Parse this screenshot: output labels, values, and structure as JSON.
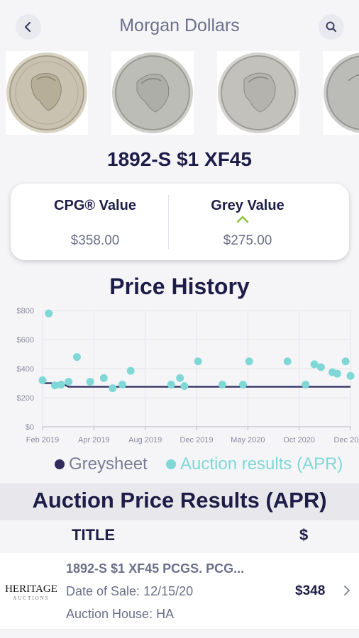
{
  "header": {
    "title": "Morgan Dollars",
    "back_icon": "chevron-left-icon",
    "search_icon": "search-icon"
  },
  "coin_images": [
    {
      "name": "coin-image-1",
      "tone": "#b9b3a6"
    },
    {
      "name": "coin-image-2",
      "tone": "#b0b0ab"
    },
    {
      "name": "coin-image-3",
      "tone": "#b8b7b2"
    },
    {
      "name": "coin-image-4",
      "tone": "#acacaa"
    }
  ],
  "coin_name": "1892-S $1 XF45",
  "values": {
    "cpg_label": "CPG® Value",
    "cpg_amount": "$358.00",
    "grey_label": "Grey Value",
    "grey_amount": "$275.00",
    "grey_trend_icon": "caret-up-icon"
  },
  "price_history_title": "Price History",
  "chart_data": {
    "type": "scatter",
    "x_ticks": [
      "Feb 2019",
      "Apr 2019",
      "Aug 2019",
      "Dec 2019",
      "May 2020",
      "Oct 2020",
      "Dec 2020"
    ],
    "y_ticks": [
      "$0",
      "$200",
      "$400",
      "$600",
      "$800"
    ],
    "ylim": [
      0,
      800
    ],
    "xlim": [
      "2019-02-01",
      "2020-12-31"
    ],
    "grid": true,
    "series": [
      {
        "name": "Greysheet",
        "type": "line",
        "color": "#2e2d5e",
        "points": [
          {
            "x": "2019-02-01",
            "y": 300
          },
          {
            "x": "2019-03-15",
            "y": 300
          },
          {
            "x": "2019-04-01",
            "y": 275
          },
          {
            "x": "2020-12-31",
            "y": 275
          }
        ]
      },
      {
        "name": "Auction results (APR)",
        "type": "scatter",
        "color": "#7fd8d6",
        "points": [
          {
            "x": "2019-02-01",
            "y": 320
          },
          {
            "x": "2019-02-15",
            "y": 780
          },
          {
            "x": "2019-03-01",
            "y": 285
          },
          {
            "x": "2019-03-15",
            "y": 290
          },
          {
            "x": "2019-04-01",
            "y": 310
          },
          {
            "x": "2019-04-20",
            "y": 480
          },
          {
            "x": "2019-05-20",
            "y": 310
          },
          {
            "x": "2019-06-20",
            "y": 335
          },
          {
            "x": "2019-07-10",
            "y": 265
          },
          {
            "x": "2019-08-01",
            "y": 290
          },
          {
            "x": "2019-08-20",
            "y": 385
          },
          {
            "x": "2019-11-20",
            "y": 290
          },
          {
            "x": "2019-12-10",
            "y": 335
          },
          {
            "x": "2019-12-20",
            "y": 280
          },
          {
            "x": "2020-01-20",
            "y": 450
          },
          {
            "x": "2020-03-15",
            "y": 290
          },
          {
            "x": "2020-05-01",
            "y": 290
          },
          {
            "x": "2020-05-15",
            "y": 450
          },
          {
            "x": "2020-08-10",
            "y": 450
          },
          {
            "x": "2020-09-20",
            "y": 290
          },
          {
            "x": "2020-10-10",
            "y": 430
          },
          {
            "x": "2020-10-25",
            "y": 410
          },
          {
            "x": "2020-11-20",
            "y": 375
          },
          {
            "x": "2020-12-01",
            "y": 365
          },
          {
            "x": "2020-12-20",
            "y": 450
          },
          {
            "x": "2020-12-31",
            "y": 350
          }
        ]
      }
    ]
  },
  "legend": {
    "greysheet": "Greysheet",
    "auction": "Auction results (APR)"
  },
  "apr": {
    "title": "Auction Price Results (APR)",
    "col_title": "TITLE",
    "col_price": "$"
  },
  "results": [
    {
      "logo_text": "HERITAGE",
      "logo_sub": "AUCTIONS",
      "title": "1892-S $1 XF45 PCGS. PCG...",
      "date_label": "Date of Sale:",
      "date": "12/15/20",
      "house_label": "Auction House:",
      "house": "HA",
      "price": "$348"
    }
  ]
}
